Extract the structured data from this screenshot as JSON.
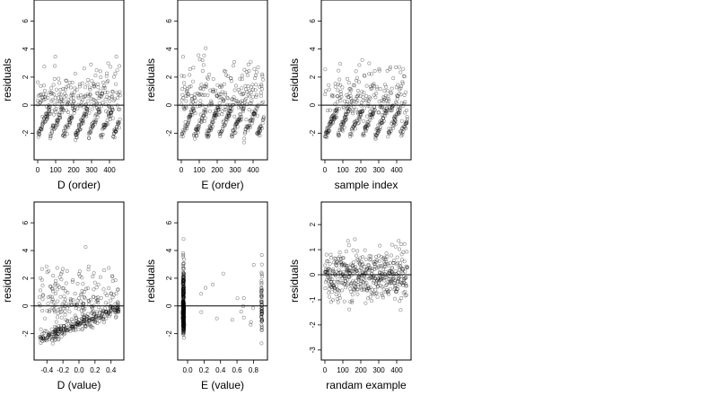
{
  "chart_data": [
    {
      "type": "scatter",
      "id": "d-order",
      "xlabel": "D (order)",
      "ylabel": "residuals",
      "xlim": [
        -20,
        480
      ],
      "ylim": [
        -3.9,
        7.5
      ],
      "xticks": [
        0,
        100,
        200,
        300,
        400
      ],
      "xticklabels": [
        "0",
        "100",
        "200",
        "300",
        "400"
      ],
      "yticks": [
        -2,
        0,
        2,
        4,
        6
      ],
      "yticklabels": [
        "-2",
        "0",
        "2",
        "4",
        "6"
      ],
      "hline": 0,
      "pattern": "order-d"
    },
    {
      "type": "scatter",
      "id": "e-order",
      "xlabel": "E (order)",
      "ylabel": "residuals",
      "xlim": [
        -20,
        480
      ],
      "ylim": [
        -3.9,
        7.5
      ],
      "xticks": [
        0,
        100,
        200,
        300,
        400
      ],
      "xticklabels": [
        "0",
        "100",
        "200",
        "300",
        "400"
      ],
      "yticks": [
        -2,
        0,
        2,
        4,
        6
      ],
      "yticklabels": [
        "-2",
        "0",
        "2",
        "4",
        "6"
      ],
      "hline": 0,
      "pattern": "order-e"
    },
    {
      "type": "scatter",
      "id": "sample-index",
      "xlabel": "sample index",
      "ylabel": "residuals",
      "xlim": [
        -20,
        480
      ],
      "ylim": [
        -3.9,
        7.5
      ],
      "xticks": [
        0,
        100,
        200,
        300,
        400
      ],
      "xticklabels": [
        "0",
        "100",
        "200",
        "300",
        "400"
      ],
      "yticks": [
        -2,
        0,
        2,
        4,
        6
      ],
      "yticklabels": [
        "-2",
        "0",
        "2",
        "4",
        "6"
      ],
      "hline": 0,
      "pattern": "order-s"
    },
    {
      "type": "scatter",
      "id": "d-value",
      "xlabel": "D (value)",
      "ylabel": "residuals",
      "xlim": [
        -0.56,
        0.56
      ],
      "ylim": [
        -3.9,
        7.5
      ],
      "xticks": [
        -0.4,
        -0.2,
        0,
        0.2,
        0.4
      ],
      "xticklabels": [
        "-0.4",
        "-0.2",
        "0.0",
        "0.2",
        "0.4"
      ],
      "yticks": [
        -2,
        0,
        2,
        4,
        6
      ],
      "yticklabels": [
        "-2",
        "0",
        "2",
        "4",
        "6"
      ],
      "hline": 0,
      "pattern": "value-d"
    },
    {
      "type": "scatter",
      "id": "e-value",
      "xlabel": "E (value)",
      "ylabel": "residuals",
      "xlim": [
        -0.12,
        0.97
      ],
      "ylim": [
        -3.9,
        7.5
      ],
      "xticks": [
        0,
        0.2,
        0.4,
        0.6,
        0.8
      ],
      "xticklabels": [
        "0.0",
        "0.2",
        "0.4",
        "0.6",
        "0.8"
      ],
      "yticks": [
        -2,
        0,
        2,
        4,
        6
      ],
      "yticklabels": [
        "-2",
        "0",
        "2",
        "4",
        "6"
      ],
      "hline": 0,
      "pattern": "value-e"
    },
    {
      "type": "scatter",
      "id": "random-example",
      "xlabel": "randam example",
      "ylabel": "residuals",
      "xlim": [
        -20,
        480
      ],
      "ylim": [
        -3.4,
        2.9
      ],
      "xticks": [
        0,
        100,
        200,
        300,
        400
      ],
      "xticklabels": [
        "0",
        "100",
        "200",
        "300",
        "400"
      ],
      "yticks": [
        -3,
        -2,
        -1,
        0,
        1,
        2
      ],
      "yticklabels": [
        "-3",
        "-2",
        "-1",
        "0",
        "1",
        "2"
      ],
      "hline": 0,
      "pattern": "random"
    }
  ]
}
